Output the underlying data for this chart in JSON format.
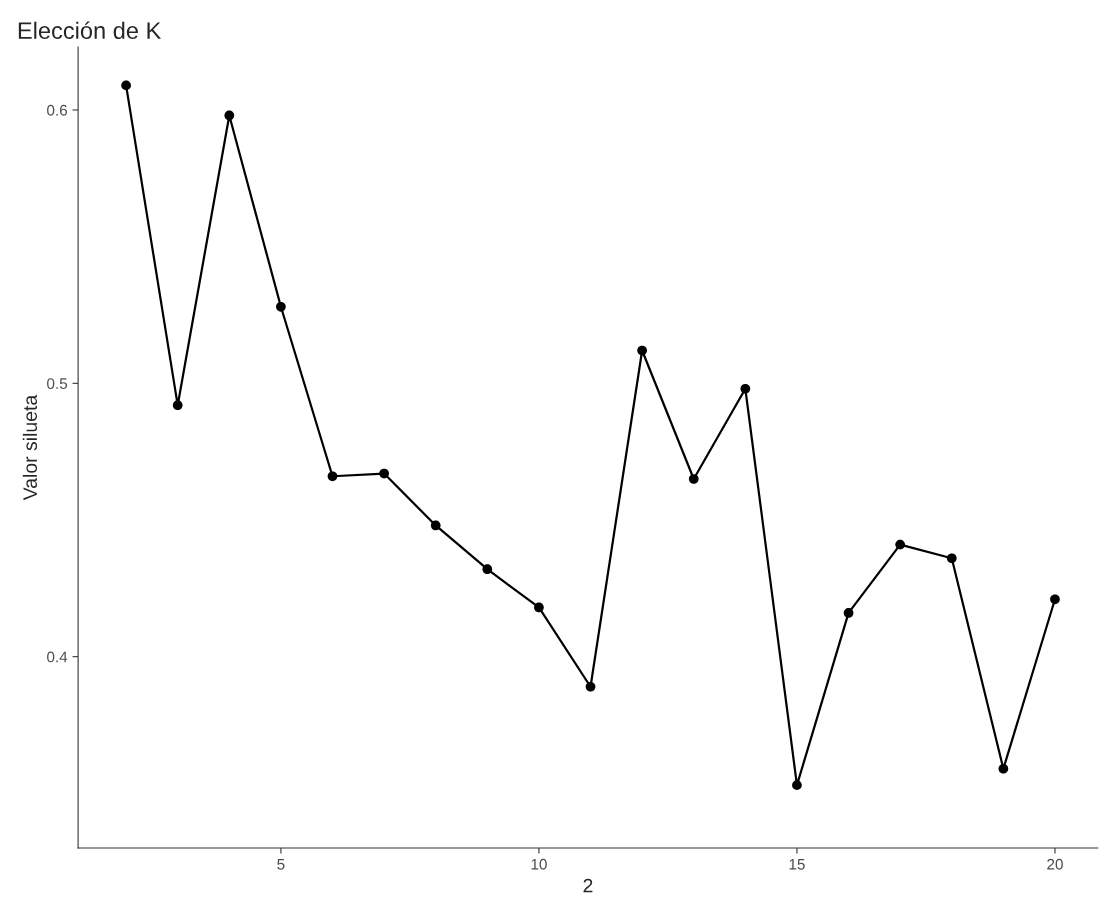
{
  "chart_data": {
    "type": "line",
    "title": "Elección de K",
    "xlabel": "2",
    "ylabel": "Valor silueta",
    "x": [
      2,
      3,
      4,
      5,
      6,
      7,
      8,
      9,
      10,
      11,
      12,
      13,
      14,
      15,
      16,
      17,
      18,
      19,
      20
    ],
    "series": [
      {
        "color": "#000000",
        "values": [
          0.609,
          0.492,
          0.598,
          0.528,
          0.466,
          0.467,
          0.448,
          0.432,
          0.418,
          0.389,
          0.512,
          0.465,
          0.498,
          0.353,
          0.416,
          0.441,
          0.436,
          0.359,
          0.421
        ]
      }
    ],
    "xlim": [
      1.07,
      20.83
    ],
    "xticks": [
      5,
      10,
      15,
      20
    ],
    "ylim": [
      0.33,
      0.623
    ],
    "yticks": [
      0.4,
      0.5,
      0.6
    ],
    "grid": false,
    "marker": "circle",
    "line_style": "solid"
  }
}
